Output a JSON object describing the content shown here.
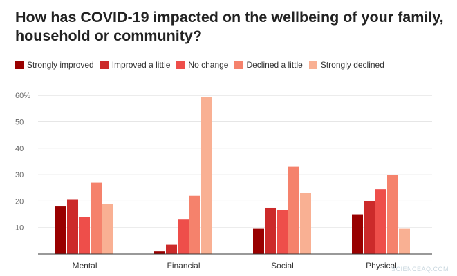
{
  "title": "How has COVID-19 impacted on the wellbeing of your family, household or community?",
  "watermark": "SCIENCEAQ.COM",
  "chart_data": {
    "type": "bar",
    "categories": [
      "Mental",
      "Financial",
      "Social",
      "Physical"
    ],
    "series": [
      {
        "name": "Strongly improved",
        "color": "#990000",
        "values": [
          18,
          1,
          9.5,
          15
        ]
      },
      {
        "name": "Improved a little",
        "color": "#cc2a2a",
        "values": [
          20.5,
          3.5,
          17.5,
          20
        ]
      },
      {
        "name": "No change",
        "color": "#ee4e4a",
        "values": [
          14,
          13,
          16.5,
          24.5
        ]
      },
      {
        "name": "Declined a little",
        "color": "#f5826c",
        "values": [
          27,
          22,
          33,
          30
        ]
      },
      {
        "name": "Strongly declined",
        "color": "#f9b093",
        "values": [
          19,
          59.5,
          23,
          9.5
        ]
      }
    ],
    "yticks": [
      {
        "value": 10,
        "label": "10"
      },
      {
        "value": 20,
        "label": "20"
      },
      {
        "value": 30,
        "label": "30"
      },
      {
        "value": 40,
        "label": "40"
      },
      {
        "value": 50,
        "label": "50"
      },
      {
        "value": 60,
        "label": "60%"
      }
    ],
    "ylim": [
      0,
      60
    ],
    "grid": true,
    "legend_position": "top-left"
  }
}
